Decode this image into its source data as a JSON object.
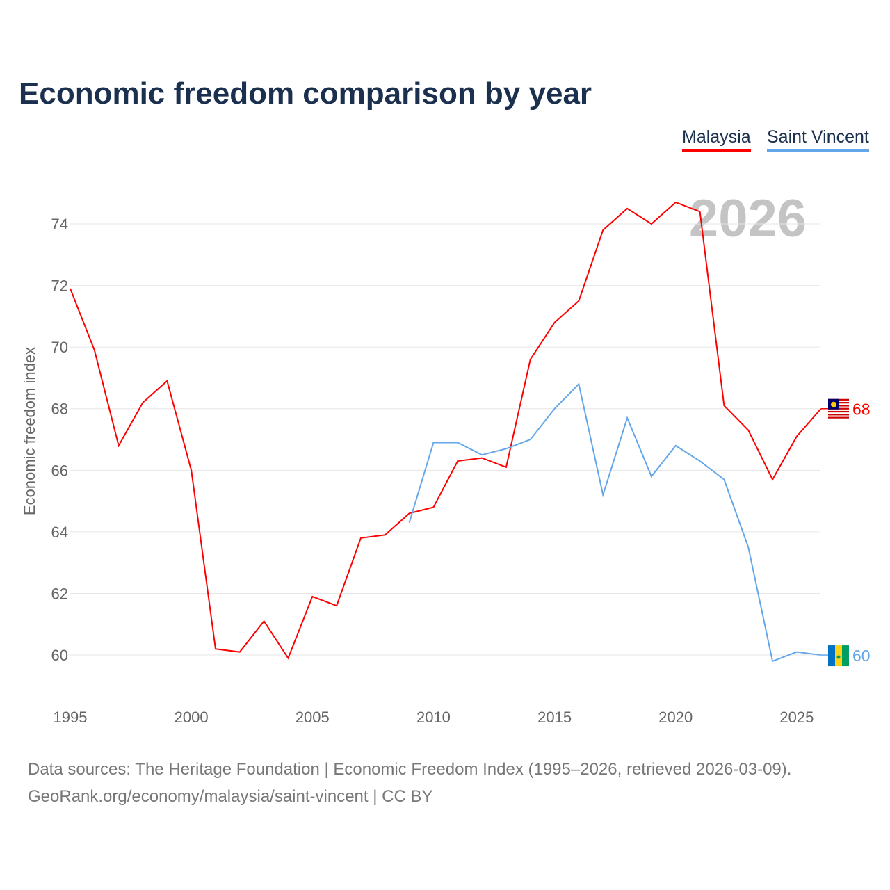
{
  "chart_data": {
    "type": "line",
    "title": "Economic freedom comparison by year",
    "xlabel": "",
    "ylabel": "Economic freedom index",
    "xlim": [
      1995,
      2026
    ],
    "ylim": [
      59,
      75.5
    ],
    "x_ticks": [
      1995,
      2000,
      2005,
      2010,
      2015,
      2020,
      2025
    ],
    "y_ticks": [
      60,
      62,
      64,
      66,
      68,
      70,
      72,
      74
    ],
    "grid": true,
    "legend_placement": "top-right",
    "watermark_year": "2026",
    "series": [
      {
        "name": "Malaysia",
        "color": "#ff0000",
        "end_label": "68",
        "x": [
          1995,
          1996,
          1997,
          1998,
          1999,
          2000,
          2001,
          2002,
          2003,
          2004,
          2005,
          2006,
          2007,
          2008,
          2009,
          2010,
          2011,
          2012,
          2013,
          2014,
          2015,
          2016,
          2017,
          2018,
          2019,
          2020,
          2021,
          2022,
          2023,
          2024,
          2025,
          2026
        ],
        "values": [
          71.9,
          69.9,
          66.8,
          68.2,
          68.9,
          66.0,
          60.2,
          60.1,
          61.1,
          59.9,
          61.9,
          61.6,
          63.8,
          63.9,
          64.6,
          64.8,
          66.3,
          66.4,
          66.1,
          69.6,
          70.8,
          71.5,
          73.8,
          74.5,
          74.0,
          74.7,
          74.4,
          68.1,
          67.3,
          65.7,
          67.1,
          68.0
        ]
      },
      {
        "name": "Saint Vincent",
        "color": "#63a7ea",
        "end_label": "60",
        "x": [
          2009,
          2010,
          2011,
          2012,
          2013,
          2014,
          2015,
          2016,
          2017,
          2018,
          2019,
          2020,
          2021,
          2022,
          2023,
          2024,
          2025,
          2026
        ],
        "values": [
          64.3,
          66.9,
          66.9,
          66.5,
          66.7,
          67.0,
          68.0,
          68.8,
          65.2,
          67.7,
          65.8,
          66.8,
          66.3,
          65.7,
          63.5,
          59.8,
          60.1,
          60.0
        ]
      }
    ]
  },
  "footer": {
    "line1": "Data sources: The Heritage Foundation | Economic Freedom Index (1995–2026, retrieved 2026-03-09).",
    "line2": "GeoRank.org/economy/malaysia/saint-vincent | CC BY"
  }
}
